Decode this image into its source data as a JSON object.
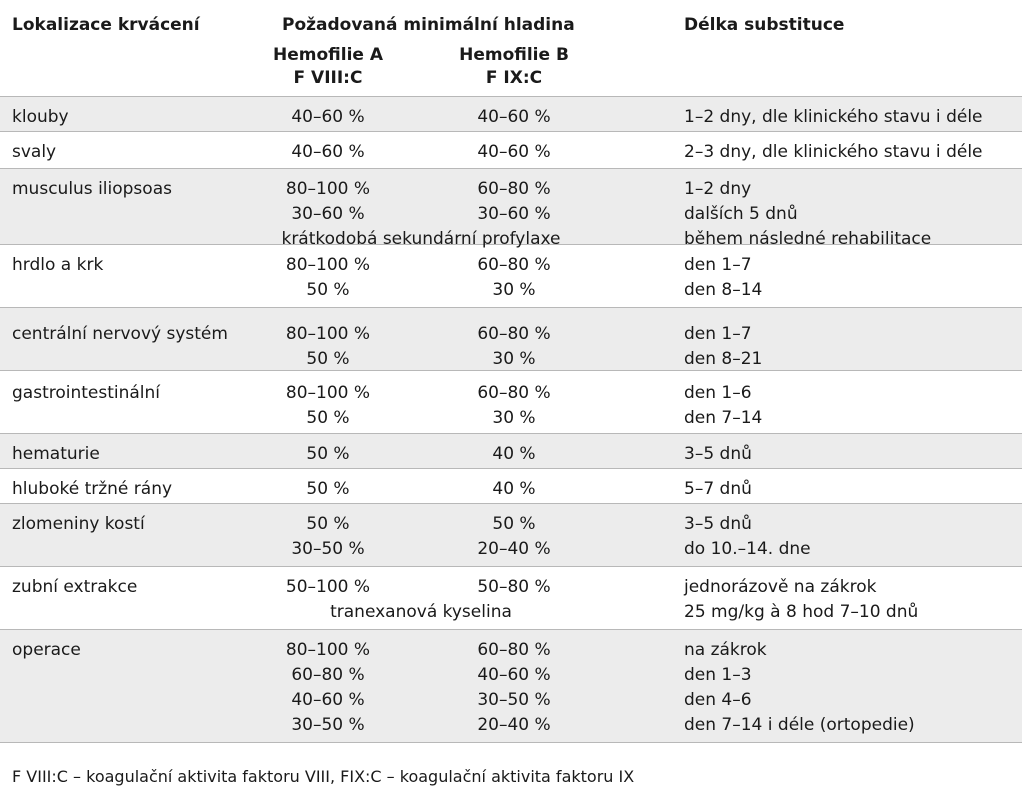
{
  "header": {
    "location": "Lokalizace krvácení",
    "required_level": "Požadovaná minimální hladina",
    "duration": "Délka substituce",
    "hemophilia_a": "Hemofilie A",
    "hemophilia_b": "Hemofilie B",
    "factor_a": "F VIII:C",
    "factor_b": "F IX:C"
  },
  "rows": [
    {
      "location": "klouby",
      "a": [
        "40–60 %"
      ],
      "b": [
        "40–60 %"
      ],
      "note": "",
      "duration": [
        "1–2 dny, dle klinického stavu i déle"
      ]
    },
    {
      "location": "svaly",
      "a": [
        "40–60 %"
      ],
      "b": [
        "40–60 %"
      ],
      "note": "",
      "duration": [
        "2–3 dny, dle klinického stavu i déle"
      ]
    },
    {
      "location": "musculus iliopsoas",
      "a": [
        "80–100 %",
        "30–60 %"
      ],
      "b": [
        "60–80 %",
        "30–60 %"
      ],
      "note": "krátkodobá sekundární profylaxe",
      "duration": [
        "1–2 dny",
        "dalších 5 dnů",
        "během následné rehabilitace"
      ]
    },
    {
      "location": "hrdlo a krk",
      "a": [
        "80–100 %",
        "50 %"
      ],
      "b": [
        "60–80 %",
        "30 %"
      ],
      "note": "",
      "duration": [
        "den 1–7",
        "den 8–14"
      ]
    },
    {
      "location": "centrální nervový systém",
      "a": [
        "80–100 %",
        "50 %"
      ],
      "b": [
        "60–80 %",
        "30 %"
      ],
      "note": "",
      "duration": [
        "den 1–7",
        "den 8–21"
      ]
    },
    {
      "location": "gastrointestinální",
      "a": [
        "80–100 %",
        "50 %"
      ],
      "b": [
        "60–80 %",
        "30 %"
      ],
      "note": "",
      "duration": [
        "den 1–6",
        "den 7–14"
      ]
    },
    {
      "location": "hematurie",
      "a": [
        "50 %"
      ],
      "b": [
        "40 %"
      ],
      "note": "",
      "duration": [
        "3–5 dnů"
      ]
    },
    {
      "location": "hluboké tržné rány",
      "a": [
        "50 %"
      ],
      "b": [
        "40 %"
      ],
      "note": "",
      "duration": [
        "5–7 dnů"
      ]
    },
    {
      "location": "zlomeniny kostí",
      "a": [
        "50 %",
        "30–50 %"
      ],
      "b": [
        "50 %",
        "20–40 %"
      ],
      "note": "",
      "duration": [
        "3–5 dnů",
        "do 10.–14. dne"
      ]
    },
    {
      "location": "zubní extrakce",
      "a": [
        "50–100 %"
      ],
      "b": [
        "50–80 %"
      ],
      "note": "tranexanová kyselina",
      "duration": [
        "jednorázově na zákrok",
        "25 mg/kg à 8 hod 7–10 dnů"
      ]
    },
    {
      "location": "operace",
      "a": [
        "80–100 %",
        "60–80 %",
        "40–60 %",
        "30–50 %"
      ],
      "b": [
        "60–80 %",
        "40–60 %",
        "30–50 %",
        "20–40 %"
      ],
      "note": "",
      "duration": [
        "na zákrok",
        "den 1–3",
        "den 4–6",
        "den 7–14 i déle (ortopedie)"
      ]
    }
  ],
  "footnote": "F VIII:C – koagulační aktivita faktoru VIII, FIX:C – koagulační aktivita faktoru IX",
  "colors": {
    "shaded_row": "#ececec",
    "text": "#1a1a1a",
    "rule": "#b8b8b8"
  }
}
